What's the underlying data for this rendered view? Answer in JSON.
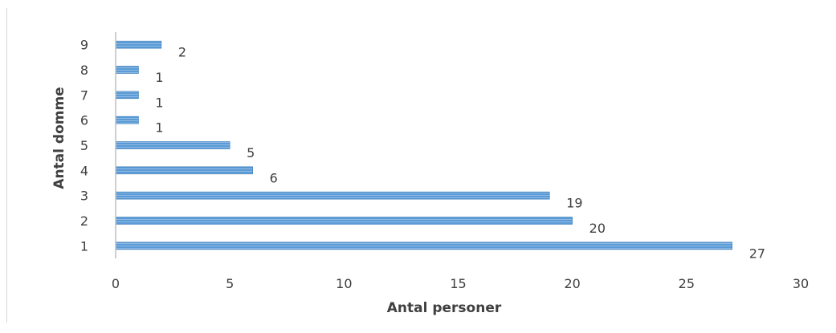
{
  "chart_data": {
    "type": "bar",
    "orientation": "horizontal",
    "categories": [
      "1",
      "2",
      "3",
      "4",
      "5",
      "6",
      "7",
      "8",
      "9"
    ],
    "values": [
      27,
      20,
      19,
      6,
      5,
      1,
      1,
      1,
      2
    ],
    "data_labels": [
      "27",
      "20",
      "19",
      "6",
      "5",
      "1",
      "1",
      "1",
      "2"
    ],
    "xlabel": "Antal personer",
    "ylabel": "Antal domme",
    "xlim": [
      0,
      30
    ],
    "x_ticks": [
      "0",
      "5",
      "10",
      "15",
      "20",
      "25",
      "30"
    ],
    "grid": false,
    "legend": "none",
    "bar_color": "#5b9bd5",
    "bar_edge_color": "#2e75b6"
  }
}
